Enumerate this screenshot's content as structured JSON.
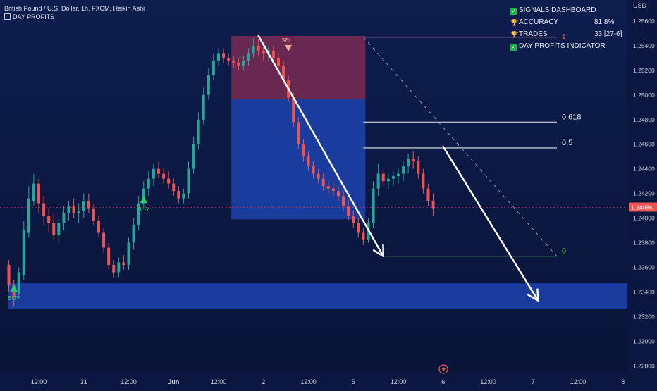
{
  "header": {
    "title": "British Pound / U.S. Dollar, 1h, FXCM, Heikin Ashi",
    "indicator": "DAY PROFITS"
  },
  "dashboard": {
    "title": "SIGNALS DASHBOARD",
    "accuracy_label": "ACCURACY",
    "accuracy_value": "81.8%",
    "trades_label": "TRADES",
    "trades_value": "33 [27-6]",
    "indicator_label": "DAY PROFITS INDICATOR",
    "marker": "1"
  },
  "colors": {
    "background": "#0b1740",
    "up": "#26a69a",
    "down": "#ef5350",
    "zone": "#1f46b8",
    "sell_zone": "#7a2a52",
    "signal_buy": "#2ecc71",
    "signal_sell": "#f4a6a0",
    "price_tag": "#ef5350"
  },
  "chart_data": {
    "type": "candlestick",
    "symbol": "British Pound / U.S. Dollar",
    "timeframe": "1h",
    "source": "FXCM",
    "style": "Heikin Ashi",
    "y_axis_unit": "USD",
    "ylim": [
      1.2275,
      1.2576
    ],
    "y_ticks": [
      "1.25600",
      "1.25400",
      "1.25200",
      "1.25000",
      "1.24800",
      "1.24600",
      "1.24400",
      "1.24200",
      "1.24000",
      "1.23800",
      "1.23600",
      "1.23400",
      "1.23200",
      "1.23000",
      "1.22800"
    ],
    "x_ticks": [
      "12:00",
      "31",
      "12:00",
      "Jun",
      "12:00",
      "2",
      "12:00",
      "5",
      "12:00",
      "6",
      "12:00",
      "7",
      "12:00",
      "8",
      "12:00"
    ],
    "x_tick_bars": [
      6,
      15,
      24,
      33,
      42,
      51,
      60,
      69,
      78,
      87,
      96,
      105,
      114,
      123,
      132
    ],
    "last_price": "1.24086",
    "candles": [
      [
        1.2362,
        1.2366,
        1.234,
        1.2346
      ],
      [
        1.2346,
        1.235,
        1.2328,
        1.2336
      ],
      [
        1.2338,
        1.236,
        1.2334,
        1.2356
      ],
      [
        1.2354,
        1.2398,
        1.235,
        1.239
      ],
      [
        1.2388,
        1.2426,
        1.2384,
        1.2416
      ],
      [
        1.2414,
        1.2436,
        1.241,
        1.2428
      ],
      [
        1.2428,
        1.2432,
        1.2404,
        1.2412
      ],
      [
        1.2412,
        1.2418,
        1.2394,
        1.2402
      ],
      [
        1.2402,
        1.2408,
        1.2388,
        1.2396
      ],
      [
        1.2396,
        1.2404,
        1.2382,
        1.2386
      ],
      [
        1.2386,
        1.24,
        1.238,
        1.2396
      ],
      [
        1.2396,
        1.241,
        1.239,
        1.2404
      ],
      [
        1.2404,
        1.2414,
        1.2398,
        1.241
      ],
      [
        1.241,
        1.2416,
        1.24,
        1.2404
      ],
      [
        1.2404,
        1.2412,
        1.2396,
        1.2406
      ],
      [
        1.2406,
        1.242,
        1.24,
        1.2414
      ],
      [
        1.2414,
        1.242,
        1.2404,
        1.2408
      ],
      [
        1.2408,
        1.2412,
        1.2394,
        1.2398
      ],
      [
        1.2398,
        1.2402,
        1.2384,
        1.2388
      ],
      [
        1.2388,
        1.2392,
        1.2372,
        1.2376
      ],
      [
        1.2376,
        1.238,
        1.2358,
        1.2362
      ],
      [
        1.2362,
        1.2366,
        1.2352,
        1.2356
      ],
      [
        1.2356,
        1.2368,
        1.2352,
        1.2364
      ],
      [
        1.2364,
        1.237,
        1.2358,
        1.2362
      ],
      [
        1.2362,
        1.2384,
        1.2358,
        1.238
      ],
      [
        1.238,
        1.24,
        1.2374,
        1.2394
      ],
      [
        1.2394,
        1.2418,
        1.239,
        1.2412
      ],
      [
        1.2412,
        1.243,
        1.2408,
        1.2424
      ],
      [
        1.2424,
        1.2438,
        1.2418,
        1.2432
      ],
      [
        1.2432,
        1.2444,
        1.2426,
        1.244
      ],
      [
        1.244,
        1.2446,
        1.2432,
        1.2436
      ],
      [
        1.2436,
        1.244,
        1.2428,
        1.2432
      ],
      [
        1.2432,
        1.2438,
        1.2424,
        1.2428
      ],
      [
        1.2428,
        1.2432,
        1.2418,
        1.2422
      ],
      [
        1.2422,
        1.2426,
        1.2412,
        1.2416
      ],
      [
        1.2416,
        1.2424,
        1.2412,
        1.242
      ],
      [
        1.242,
        1.2446,
        1.2416,
        1.244
      ],
      [
        1.244,
        1.2466,
        1.2436,
        1.246
      ],
      [
        1.246,
        1.2486,
        1.2456,
        1.248
      ],
      [
        1.248,
        1.2506,
        1.2476,
        1.25
      ],
      [
        1.25,
        1.2522,
        1.2496,
        1.2516
      ],
      [
        1.2516,
        1.2534,
        1.2512,
        1.2528
      ],
      [
        1.2528,
        1.2538,
        1.2524,
        1.2534
      ],
      [
        1.2534,
        1.2538,
        1.2526,
        1.253
      ],
      [
        1.253,
        1.2534,
        1.2524,
        1.2528
      ],
      [
        1.2528,
        1.2532,
        1.2522,
        1.2526
      ],
      [
        1.2526,
        1.253,
        1.252,
        1.2524
      ],
      [
        1.2524,
        1.2532,
        1.252,
        1.2528
      ],
      [
        1.2528,
        1.2538,
        1.2524,
        1.2534
      ],
      [
        1.2534,
        1.2546,
        1.253,
        1.254
      ],
      [
        1.254,
        1.2546,
        1.2532,
        1.2536
      ],
      [
        1.2536,
        1.2542,
        1.2528,
        1.2534
      ],
      [
        1.2534,
        1.254,
        1.2528,
        1.2536
      ],
      [
        1.2536,
        1.254,
        1.2526,
        1.253
      ],
      [
        1.253,
        1.2534,
        1.252,
        1.2524
      ],
      [
        1.2524,
        1.2528,
        1.2508,
        1.2512
      ],
      [
        1.2512,
        1.2516,
        1.2494,
        1.2498
      ],
      [
        1.2498,
        1.2502,
        1.2474,
        1.2478
      ],
      [
        1.2478,
        1.2482,
        1.2456,
        1.246
      ],
      [
        1.246,
        1.2464,
        1.2446,
        1.245
      ],
      [
        1.245,
        1.2454,
        1.2438,
        1.2442
      ],
      [
        1.2442,
        1.2446,
        1.2432,
        1.2436
      ],
      [
        1.2436,
        1.244,
        1.2428,
        1.2432
      ],
      [
        1.2432,
        1.2436,
        1.2422,
        1.2426
      ],
      [
        1.2426,
        1.243,
        1.242,
        1.2424
      ],
      [
        1.2424,
        1.2428,
        1.2418,
        1.2422
      ],
      [
        1.2422,
        1.2426,
        1.2414,
        1.2418
      ],
      [
        1.2418,
        1.2422,
        1.2406,
        1.241
      ],
      [
        1.241,
        1.2414,
        1.2398,
        1.2402
      ],
      [
        1.2402,
        1.2406,
        1.2392,
        1.2396
      ],
      [
        1.2396,
        1.24,
        1.2384,
        1.2388
      ],
      [
        1.2388,
        1.2392,
        1.2378,
        1.2382
      ],
      [
        1.2382,
        1.24,
        1.238,
        1.2396
      ],
      [
        1.2396,
        1.243,
        1.2392,
        1.2424
      ],
      [
        1.2424,
        1.2444,
        1.2418,
        1.2436
      ],
      [
        1.2436,
        1.244,
        1.2426,
        1.243
      ],
      [
        1.243,
        1.2436,
        1.2424,
        1.2432
      ],
      [
        1.2432,
        1.2438,
        1.2426,
        1.2434
      ],
      [
        1.2434,
        1.244,
        1.2428,
        1.2436
      ],
      [
        1.2436,
        1.2446,
        1.243,
        1.2442
      ],
      [
        1.2442,
        1.2452,
        1.2436,
        1.2448
      ],
      [
        1.2448,
        1.2454,
        1.244,
        1.2446
      ],
      [
        1.2446,
        1.245,
        1.2432,
        1.2436
      ],
      [
        1.2436,
        1.244,
        1.242,
        1.2424
      ],
      [
        1.2424,
        1.2428,
        1.241,
        1.2414
      ],
      [
        1.2414,
        1.242,
        1.2402,
        1.2408
      ]
    ],
    "signals": [
      {
        "label": "BUY",
        "bar": 1,
        "price": 1.2346,
        "type": "buy"
      },
      {
        "label": "BUY",
        "bar": 27,
        "price": 1.2418,
        "type": "buy"
      },
      {
        "label": "SELL",
        "bar": 56,
        "price": 1.2548,
        "type": "sell"
      }
    ],
    "zones": [
      {
        "name": "demand",
        "price_top": 1.2347,
        "price_bottom": 1.2326
      },
      {
        "name": "sell-zone",
        "bar_start": 45,
        "bar_end": 71,
        "price_top": 1.2548,
        "price_mid": 1.2497,
        "price_bottom": 1.2399
      }
    ],
    "fibonacci": {
      "levels": [
        {
          "label": "1",
          "price": 1.2547
        },
        {
          "label": "0.618",
          "price": 1.2478
        },
        {
          "label": "0.5",
          "price": 1.2457
        },
        {
          "label": "0",
          "price": 1.2369
        }
      ]
    },
    "arrows": [
      {
        "from_bar": 50,
        "from_price": 1.2548,
        "to_bar": 75,
        "to_price": 1.2369
      },
      {
        "from_bar": 87,
        "from_price": 1.2458,
        "to_bar": 106,
        "to_price": 1.2333
      }
    ]
  }
}
